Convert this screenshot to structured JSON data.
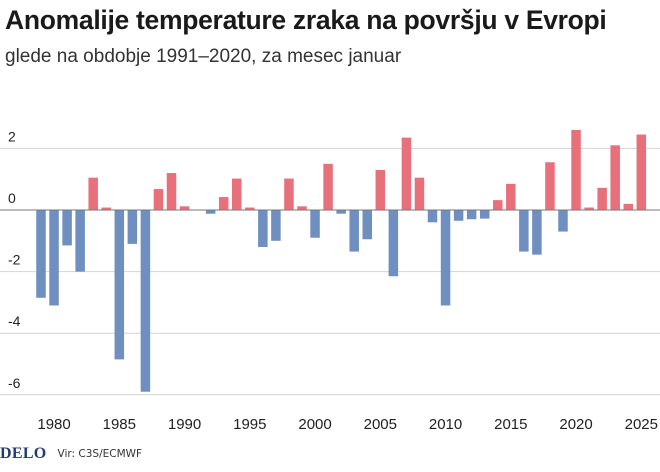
{
  "header": {
    "title": "Anomalije temperature zraka na površju v Evropi",
    "subtitle": "glede na obdobje 1991–2020, za mesec januar"
  },
  "footer": {
    "logo": "DELO",
    "source": "Vir: C3S/ECMWF"
  },
  "colors": {
    "positive": "#e8707b",
    "negative": "#6f8fc0",
    "grid": "#d4d4d4",
    "zero_line": "#777777"
  },
  "chart_data": {
    "type": "bar",
    "title": "Anomalije temperature zraka na površju v Evropi",
    "subtitle": "glede na obdobje 1991–2020, za mesec januar",
    "xlabel": "",
    "ylabel": "",
    "ylim": [
      -6.2,
      3.2
    ],
    "yticks": [
      2,
      0,
      -2,
      -4,
      -6
    ],
    "ytick_labels": [
      "2",
      "0",
      "-2",
      "-4",
      "-6"
    ],
    "xticks": [
      1980,
      1985,
      1990,
      1995,
      2000,
      2005,
      2010,
      2015,
      2020,
      2025
    ],
    "grid": true,
    "categories": [
      1979,
      1980,
      1981,
      1982,
      1983,
      1984,
      1985,
      1986,
      1987,
      1988,
      1989,
      1990,
      1991,
      1992,
      1993,
      1994,
      1995,
      1996,
      1997,
      1998,
      1999,
      2000,
      2001,
      2002,
      2003,
      2004,
      2005,
      2006,
      2007,
      2008,
      2009,
      2010,
      2011,
      2012,
      2013,
      2014,
      2015,
      2016,
      2017,
      2018,
      2019,
      2020,
      2021,
      2022,
      2023,
      2024,
      2025
    ],
    "values": [
      -2.85,
      -3.1,
      -1.15,
      -2.0,
      1.05,
      0.08,
      -4.85,
      -1.1,
      -5.9,
      0.68,
      1.2,
      0.12,
      0.0,
      -0.12,
      0.42,
      1.02,
      0.08,
      -1.2,
      -1.0,
      1.02,
      0.12,
      -0.9,
      1.5,
      -0.12,
      -1.35,
      -0.95,
      1.3,
      -2.15,
      2.35,
      1.05,
      -0.4,
      -3.1,
      -0.35,
      -0.3,
      -0.28,
      0.32,
      0.85,
      -1.35,
      -1.45,
      1.55,
      -0.7,
      2.6,
      0.08,
      0.72,
      2.1,
      0.2,
      2.45
    ]
  }
}
